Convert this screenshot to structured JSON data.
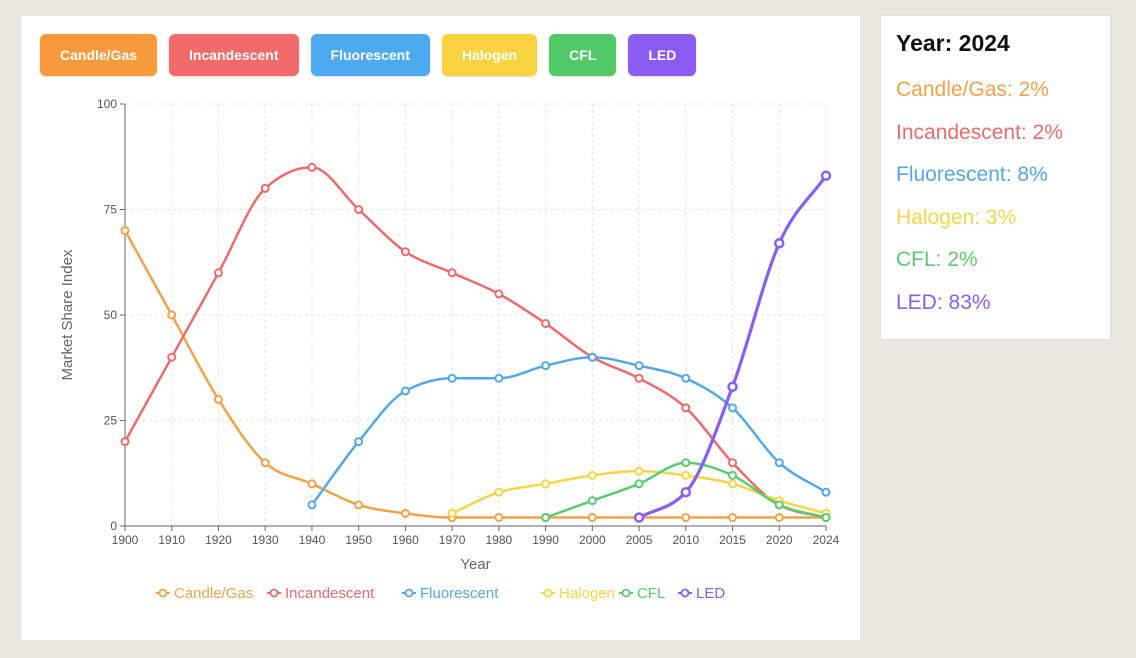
{
  "chart_data": {
    "type": "line",
    "xlabel": "Year",
    "ylabel": "Market Share Index",
    "ylim": [
      0,
      100
    ],
    "yticks": [
      0,
      25,
      50,
      75,
      100
    ],
    "x": [
      1900,
      1910,
      1920,
      1930,
      1940,
      1950,
      1960,
      1970,
      1980,
      1990,
      2000,
      2005,
      2010,
      2015,
      2020,
      2024
    ],
    "grid": true,
    "legend_position": "bottom",
    "series": [
      {
        "name": "Candle/Gas",
        "color": "#f4a24a",
        "values": [
          70,
          50,
          30,
          15,
          10,
          5,
          3,
          2,
          2,
          2,
          2,
          2,
          2,
          2,
          2,
          2
        ]
      },
      {
        "name": "Incandescent",
        "color": "#ec6b6b",
        "values": [
          20,
          40,
          60,
          80,
          85,
          75,
          65,
          60,
          55,
          48,
          40,
          35,
          28,
          15,
          5,
          2
        ]
      },
      {
        "name": "Fluorescent",
        "color": "#52a8ea",
        "values": [
          null,
          null,
          null,
          null,
          5,
          20,
          32,
          35,
          35,
          38,
          40,
          38,
          35,
          28,
          15,
          8
        ]
      },
      {
        "name": "Halogen",
        "color": "#f7d54a",
        "values": [
          null,
          null,
          null,
          null,
          null,
          null,
          null,
          3,
          8,
          10,
          12,
          13,
          12,
          10,
          6,
          3
        ]
      },
      {
        "name": "CFL",
        "color": "#5acb6e",
        "values": [
          null,
          null,
          null,
          null,
          null,
          null,
          null,
          null,
          null,
          2,
          6,
          10,
          15,
          12,
          5,
          2
        ]
      },
      {
        "name": "LED",
        "color": "#8a5ef0",
        "values": [
          null,
          null,
          null,
          null,
          null,
          null,
          null,
          null,
          null,
          null,
          null,
          2,
          8,
          33,
          67,
          83
        ]
      }
    ]
  },
  "buttons": [
    {
      "label": "Candle/Gas",
      "color": "#f79a3c"
    },
    {
      "label": "Incandescent",
      "color": "#f26a6a"
    },
    {
      "label": "Fluorescent",
      "color": "#4eaaf0"
    },
    {
      "label": "Halogen",
      "color": "#f8d33f"
    },
    {
      "label": "CFL",
      "color": "#52c967"
    },
    {
      "label": "LED",
      "color": "#8a5cf2"
    }
  ],
  "info": {
    "year_label": "Year: 2024",
    "lines": [
      {
        "text": "Candle/Gas: 2%",
        "color": "#f4a24a"
      },
      {
        "text": "Incandescent: 2%",
        "color": "#ec6b6b"
      },
      {
        "text": "Fluorescent: 8%",
        "color": "#52a8ea"
      },
      {
        "text": "Halogen: 3%",
        "color": "#f7d54a"
      },
      {
        "text": "CFL: 2%",
        "color": "#5acb6e"
      },
      {
        "text": "LED: 83%",
        "color": "#8a5ef0"
      }
    ]
  }
}
